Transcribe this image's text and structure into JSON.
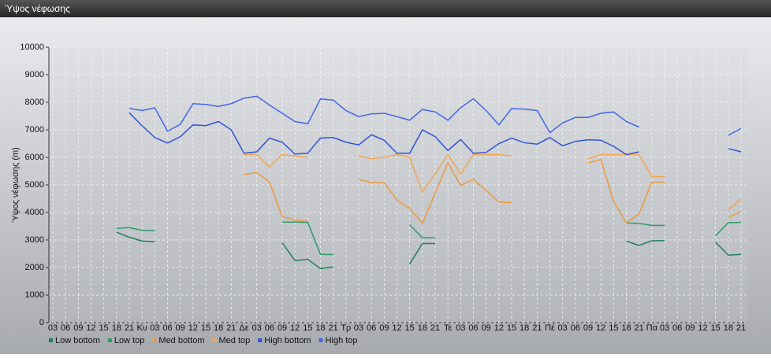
{
  "chart_data": {
    "type": "line",
    "title": "Ύψος νέφωσης",
    "y_label": "Ύψος νέφωσης (m)",
    "categories": [
      "03",
      "06",
      "09",
      "12",
      "15",
      "18",
      "21",
      "Κυ",
      "03",
      "06",
      "09",
      "12",
      "15",
      "18",
      "21",
      "Δε",
      "03",
      "06",
      "09",
      "12",
      "15",
      "18",
      "21",
      "Τρ",
      "03",
      "06",
      "09",
      "12",
      "15",
      "18",
      "21",
      "Τε",
      "03",
      "06",
      "09",
      "12",
      "15",
      "18",
      "21",
      "Πέ",
      "03",
      "06",
      "09",
      "12",
      "15",
      "18",
      "21",
      "Πα",
      "03",
      "06",
      "09",
      "12",
      "15",
      "18",
      "21"
    ],
    "ylim": [
      0,
      10000
    ],
    "yticks": [
      0,
      1000,
      2000,
      3000,
      4000,
      5000,
      6000,
      7000,
      8000,
      9000,
      10000
    ],
    "grid": true,
    "legend": "bottom",
    "series": [
      {
        "name": "Low bottom",
        "color": "#22805a",
        "values": [
          null,
          null,
          null,
          null,
          null,
          3280,
          3100,
          2960,
          2940,
          null,
          null,
          null,
          null,
          null,
          null,
          null,
          null,
          null,
          2900,
          2250,
          2300,
          1960,
          2020,
          null,
          null,
          null,
          null,
          null,
          2130,
          2870,
          2870,
          null,
          null,
          null,
          null,
          null,
          null,
          null,
          null,
          null,
          null,
          null,
          null,
          null,
          null,
          2960,
          2800,
          2970,
          2980,
          null,
          null,
          null,
          2920,
          2450,
          2480
        ]
      },
      {
        "name": "Low top",
        "color": "#2f9a68",
        "values": [
          null,
          null,
          null,
          null,
          null,
          3420,
          3450,
          3350,
          3340,
          null,
          null,
          null,
          null,
          null,
          null,
          null,
          null,
          null,
          3650,
          3650,
          3640,
          2480,
          2470,
          null,
          null,
          null,
          null,
          null,
          3550,
          3080,
          3080,
          null,
          null,
          null,
          null,
          null,
          null,
          null,
          null,
          null,
          null,
          null,
          null,
          null,
          null,
          3620,
          3600,
          3530,
          3530,
          null,
          null,
          null,
          3150,
          3630,
          3640
        ]
      },
      {
        "name": "Med bottom",
        "color": "#ec9a40",
        "values": [
          null,
          null,
          null,
          null,
          null,
          null,
          null,
          null,
          null,
          null,
          null,
          null,
          null,
          null,
          null,
          5380,
          5450,
          5100,
          3850,
          3720,
          3680,
          null,
          null,
          null,
          5200,
          5080,
          5080,
          4450,
          4150,
          3600,
          4700,
          5800,
          4980,
          5200,
          4800,
          4380,
          4350,
          null,
          null,
          null,
          null,
          null,
          5800,
          5920,
          4400,
          3620,
          3950,
          5100,
          5100,
          null,
          null,
          null,
          null,
          3800,
          4050
        ]
      },
      {
        "name": "Med top",
        "color": "#f2a550",
        "values": [
          null,
          null,
          null,
          null,
          null,
          null,
          null,
          null,
          null,
          null,
          null,
          null,
          null,
          null,
          null,
          6100,
          6100,
          5650,
          6100,
          6050,
          6000,
          null,
          null,
          null,
          6050,
          5950,
          6000,
          6100,
          6000,
          4750,
          5400,
          6100,
          5400,
          6100,
          6100,
          6100,
          6050,
          null,
          null,
          null,
          null,
          null,
          5950,
          6100,
          6100,
          6100,
          6100,
          5300,
          5300,
          null,
          null,
          null,
          null,
          4100,
          4480
        ]
      },
      {
        "name": "High bottom",
        "color": "#2f55d6",
        "values": [
          null,
          null,
          null,
          null,
          null,
          null,
          7620,
          7150,
          6720,
          6520,
          6750,
          7180,
          7150,
          7300,
          7000,
          6150,
          6200,
          6700,
          6550,
          6120,
          6150,
          6700,
          6720,
          6550,
          6450,
          6820,
          6620,
          6150,
          6150,
          7000,
          6750,
          6250,
          6650,
          6150,
          6180,
          6500,
          6700,
          6530,
          6480,
          6720,
          6420,
          6580,
          6640,
          6620,
          6400,
          6100,
          6200,
          null,
          null,
          null,
          null,
          null,
          null,
          6320,
          6200
        ]
      },
      {
        "name": "High top",
        "color": "#4466ea",
        "values": [
          null,
          null,
          null,
          null,
          null,
          null,
          7780,
          7700,
          7800,
          6950,
          7200,
          7950,
          7920,
          7850,
          7950,
          8150,
          8220,
          7900,
          7600,
          7300,
          7220,
          8120,
          8080,
          7700,
          7480,
          7580,
          7600,
          7480,
          7350,
          7740,
          7650,
          7350,
          7800,
          8130,
          7700,
          7180,
          7770,
          7750,
          7700,
          6900,
          7250,
          7450,
          7450,
          7600,
          7650,
          7300,
          7100,
          null,
          null,
          null,
          null,
          null,
          null,
          6800,
          7050
        ]
      }
    ]
  }
}
